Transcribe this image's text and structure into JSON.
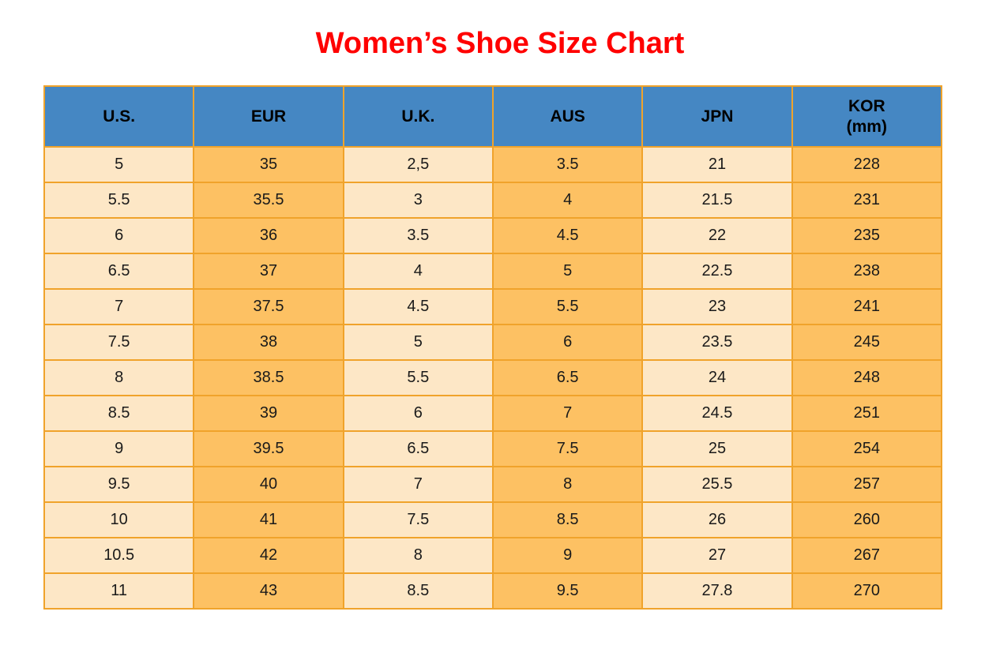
{
  "title": "Women’s Shoe Size Chart",
  "colors": {
    "title": "#FF0000",
    "header_bg": "#4587C3",
    "header_text": "#000000",
    "col_light": "#FDE7C6",
    "col_dark": "#FDC163",
    "border": "#F0A32B",
    "cell_text": "#1A1A1A",
    "page_bg": "#FFFFFF"
  },
  "chart_data": {
    "type": "table",
    "title": "Women’s Shoe Size Chart",
    "columns": [
      {
        "label": "U.S.",
        "sub": ""
      },
      {
        "label": "EUR",
        "sub": ""
      },
      {
        "label": "U.K.",
        "sub": ""
      },
      {
        "label": "AUS",
        "sub": ""
      },
      {
        "label": "JPN",
        "sub": ""
      },
      {
        "label": "KOR",
        "sub": "(mm)"
      }
    ],
    "rows": [
      [
        "5",
        "35",
        "2,5",
        "3.5",
        "21",
        "228"
      ],
      [
        "5.5",
        "35.5",
        "3",
        "4",
        "21.5",
        "231"
      ],
      [
        "6",
        "36",
        "3.5",
        "4.5",
        "22",
        "235"
      ],
      [
        "6.5",
        "37",
        "4",
        "5",
        "22.5",
        "238"
      ],
      [
        "7",
        "37.5",
        "4.5",
        "5.5",
        "23",
        "241"
      ],
      [
        "7.5",
        "38",
        "5",
        "6",
        "23.5",
        "245"
      ],
      [
        "8",
        "38.5",
        "5.5",
        "6.5",
        "24",
        "248"
      ],
      [
        "8.5",
        "39",
        "6",
        "7",
        "24.5",
        "251"
      ],
      [
        "9",
        "39.5",
        "6.5",
        "7.5",
        "25",
        "254"
      ],
      [
        "9.5",
        "40",
        "7",
        "8",
        "25.5",
        "257"
      ],
      [
        "10",
        "41",
        "7.5",
        "8.5",
        "26",
        "260"
      ],
      [
        "10.5",
        "42",
        "8",
        "9",
        "27",
        "267"
      ],
      [
        "11",
        "43",
        "8.5",
        "9.5",
        "27.8",
        "270"
      ]
    ]
  }
}
